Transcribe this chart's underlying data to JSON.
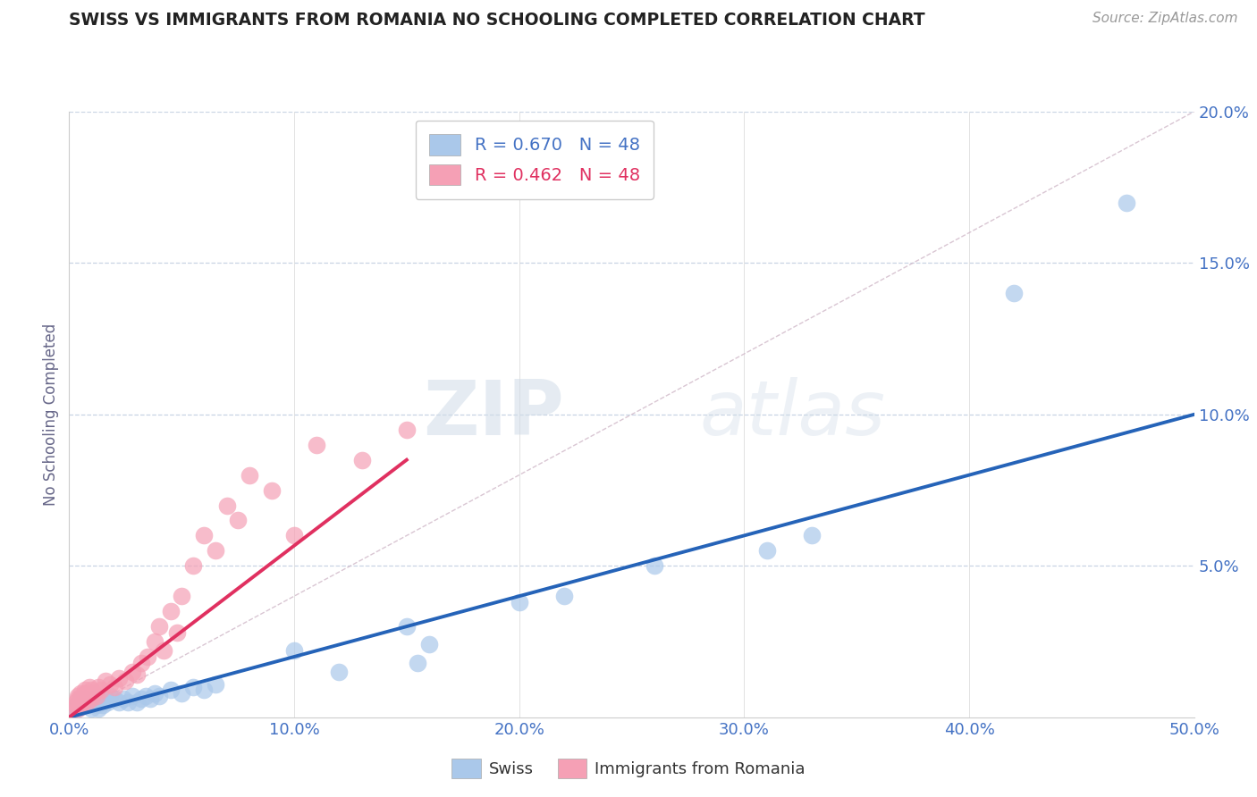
{
  "title": "SWISS VS IMMIGRANTS FROM ROMANIA NO SCHOOLING COMPLETED CORRELATION CHART",
  "source": "Source: ZipAtlas.com",
  "ylabel": "No Schooling Completed",
  "xlim": [
    0.0,
    0.5
  ],
  "ylim": [
    0.0,
    0.2
  ],
  "xticks": [
    0.0,
    0.1,
    0.2,
    0.3,
    0.4,
    0.5
  ],
  "xticklabels": [
    "0.0%",
    "10.0%",
    "20.0%",
    "30.0%",
    "40.0%",
    "50.0%"
  ],
  "yticks": [
    0.0,
    0.05,
    0.1,
    0.15,
    0.2
  ],
  "yticklabels": [
    "",
    "5.0%",
    "10.0%",
    "15.0%",
    "20.0%"
  ],
  "swiss_color": "#aac8ea",
  "romania_color": "#f5a0b5",
  "trend_swiss_color": "#2563b8",
  "trend_romania_color": "#e03060",
  "trend_guide_color": "#d0b8c8",
  "legend_swiss_label": "R = 0.670   N = 48",
  "legend_romania_label": "R = 0.462   N = 48",
  "bottom_legend_swiss": "Swiss",
  "bottom_legend_romania": "Immigrants from Romania",
  "swiss_x": [
    0.002,
    0.003,
    0.004,
    0.005,
    0.005,
    0.006,
    0.007,
    0.007,
    0.008,
    0.009,
    0.01,
    0.01,
    0.011,
    0.012,
    0.013,
    0.014,
    0.015,
    0.016,
    0.017,
    0.018,
    0.02,
    0.022,
    0.024,
    0.026,
    0.028,
    0.03,
    0.032,
    0.034,
    0.036,
    0.038,
    0.04,
    0.045,
    0.05,
    0.055,
    0.06,
    0.065,
    0.1,
    0.12,
    0.15,
    0.155,
    0.16,
    0.2,
    0.22,
    0.26,
    0.31,
    0.33,
    0.42,
    0.47
  ],
  "swiss_y": [
    0.003,
    0.004,
    0.003,
    0.005,
    0.006,
    0.005,
    0.004,
    0.006,
    0.005,
    0.004,
    0.003,
    0.005,
    0.006,
    0.004,
    0.003,
    0.005,
    0.004,
    0.006,
    0.005,
    0.007,
    0.006,
    0.005,
    0.006,
    0.005,
    0.007,
    0.005,
    0.006,
    0.007,
    0.006,
    0.008,
    0.007,
    0.009,
    0.008,
    0.01,
    0.009,
    0.011,
    0.022,
    0.015,
    0.03,
    0.018,
    0.024,
    0.038,
    0.04,
    0.05,
    0.055,
    0.06,
    0.14,
    0.17
  ],
  "romania_x": [
    0.002,
    0.003,
    0.003,
    0.004,
    0.004,
    0.004,
    0.005,
    0.005,
    0.006,
    0.006,
    0.007,
    0.007,
    0.007,
    0.008,
    0.009,
    0.009,
    0.01,
    0.01,
    0.011,
    0.012,
    0.013,
    0.014,
    0.016,
    0.018,
    0.02,
    0.022,
    0.025,
    0.028,
    0.03,
    0.032,
    0.035,
    0.038,
    0.04,
    0.042,
    0.045,
    0.048,
    0.05,
    0.055,
    0.06,
    0.065,
    0.07,
    0.075,
    0.08,
    0.09,
    0.1,
    0.11,
    0.13,
    0.15
  ],
  "romania_y": [
    0.003,
    0.004,
    0.005,
    0.003,
    0.006,
    0.007,
    0.004,
    0.008,
    0.005,
    0.007,
    0.006,
    0.008,
    0.009,
    0.005,
    0.007,
    0.01,
    0.006,
    0.009,
    0.008,
    0.007,
    0.01,
    0.009,
    0.012,
    0.011,
    0.01,
    0.013,
    0.012,
    0.015,
    0.014,
    0.018,
    0.02,
    0.025,
    0.03,
    0.022,
    0.035,
    0.028,
    0.04,
    0.05,
    0.06,
    0.055,
    0.07,
    0.065,
    0.08,
    0.075,
    0.06,
    0.09,
    0.085,
    0.095
  ],
  "watermark_zip": "ZIP",
  "watermark_atlas": "atlas",
  "title_color": "#222222",
  "tick_label_color": "#4472c4",
  "grid_color": "#c8d4e4",
  "background_color": "#ffffff"
}
